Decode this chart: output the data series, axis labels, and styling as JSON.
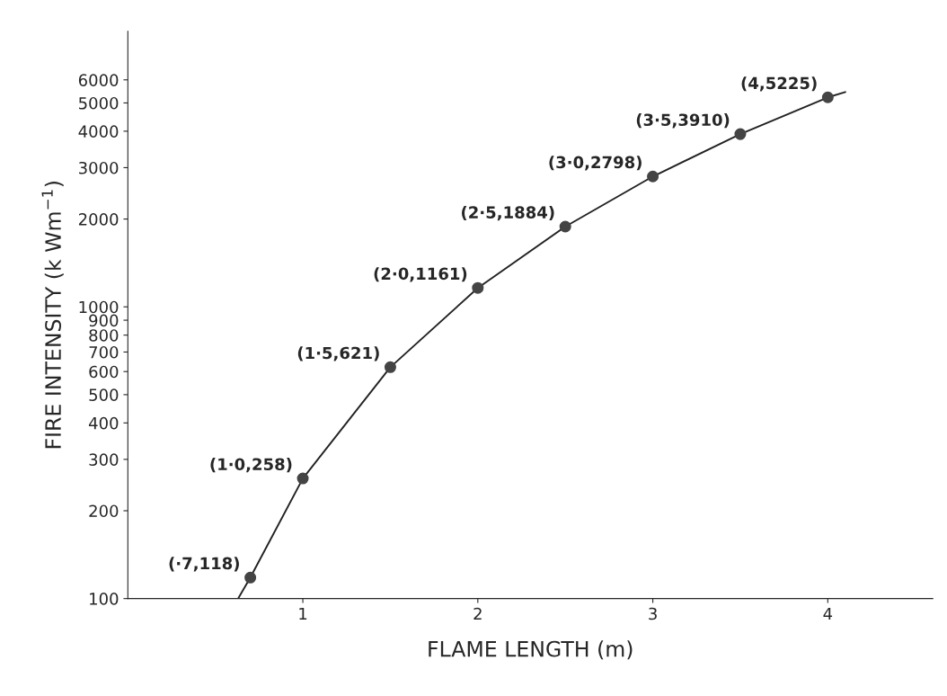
{
  "chart_data": {
    "type": "scatter",
    "xlabel": "FLAME LENGTH (m)",
    "ylabel": "FIRE INTENSITY (k Wm$^{−1}$)",
    "log": "y",
    "xlim": [
      0,
      4.6
    ],
    "ylim": [
      100,
      8800
    ],
    "xticks": [
      1,
      2,
      3,
      4
    ],
    "yticks": [
      100,
      200,
      300,
      400,
      500,
      600,
      700,
      800,
      900,
      1000,
      2000,
      3000,
      4000,
      5000,
      6000
    ],
    "grid": false,
    "legend": false,
    "series": [
      {
        "type": "line",
        "color": "#222222",
        "marker": "none",
        "line_style": "solid",
        "x": [
          0.63,
          0.7,
          1.0,
          1.5,
          2.0,
          2.5,
          3.0,
          3.5,
          4.0,
          4.1
        ],
        "values": [
          100,
          118,
          258,
          621,
          1161,
          1884,
          2798,
          3910,
          5225,
          5450
        ]
      },
      {
        "color": "#444444",
        "marker": "circle",
        "x": [
          0.7,
          1.0,
          1.5,
          2.0,
          2.5,
          3.0,
          3.5,
          4.0
        ],
        "values": [
          118,
          258,
          621,
          1161,
          1884,
          2798,
          3910,
          5225
        ]
      }
    ],
    "annotations": [
      {
        "text": "(·7,118)",
        "x": 0.7,
        "y": 118
      },
      {
        "text": "(1·0,258)",
        "x": 1.0,
        "y": 258
      },
      {
        "text": "(1·5,621)",
        "x": 1.5,
        "y": 621
      },
      {
        "text": "(2·0,1161)",
        "x": 2.0,
        "y": 1161
      },
      {
        "text": "(2·5,1884)",
        "x": 2.5,
        "y": 1884
      },
      {
        "text": "(3·0,2798)",
        "x": 3.0,
        "y": 2798
      },
      {
        "text": "(3·5,3910)",
        "x": 3.5,
        "y": 3910
      },
      {
        "text": "(4,5225)",
        "x": 4.0,
        "y": 5225
      }
    ]
  }
}
